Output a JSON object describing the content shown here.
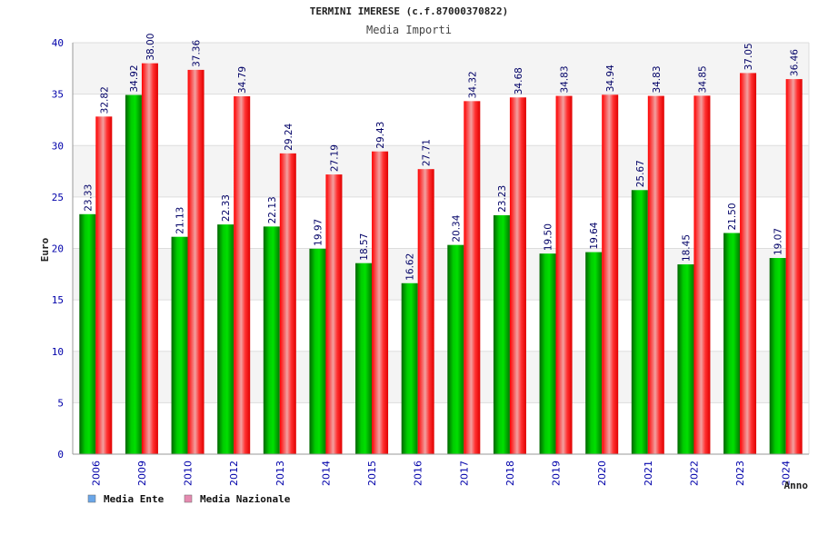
{
  "chart_data": {
    "type": "bar",
    "title": "TERMINI IMERESE (c.f.87000370822)",
    "subtitle": "Media Importi",
    "xlabel": "Anno",
    "ylabel": "Euro",
    "ylim": [
      0,
      40
    ],
    "ytick_step": 5,
    "grid": true,
    "legend_position": "bottom-left",
    "categories": [
      "2006",
      "2009",
      "2010",
      "2012",
      "2013",
      "2014",
      "2015",
      "2016",
      "2017",
      "2018",
      "2019",
      "2020",
      "2021",
      "2022",
      "2023",
      "2024"
    ],
    "series": [
      {
        "name": "Media Ente",
        "legend_color": "#6aa6e8",
        "bar_color": "#00b400",
        "values": [
          23.33,
          34.92,
          21.13,
          22.33,
          22.13,
          19.97,
          18.57,
          16.62,
          20.34,
          23.23,
          19.5,
          19.64,
          25.67,
          18.45,
          21.5,
          19.07
        ],
        "labels": [
          "23.33",
          "34.92",
          "21.13",
          "22.33",
          "22.13",
          "19.97",
          "18.57",
          "16.62",
          "20.34",
          "23.23",
          "19.50",
          "19.64",
          "25.67",
          "18.45",
          "21.50",
          "19.07"
        ]
      },
      {
        "name": "Media Nazionale",
        "legend_color": "#e58ab0",
        "bar_color": "#e60000",
        "values": [
          32.82,
          38.0,
          37.36,
          34.79,
          29.24,
          27.19,
          29.43,
          27.71,
          34.32,
          34.68,
          34.83,
          34.94,
          34.83,
          34.85,
          37.05,
          36.46
        ],
        "labels": [
          "32.82",
          "38.00",
          "37.36",
          "34.79",
          "29.24",
          "27.19",
          "29.43",
          "27.71",
          "34.32",
          "34.68",
          "34.83",
          "34.94",
          "34.83",
          "34.85",
          "37.05",
          "36.46"
        ]
      }
    ]
  }
}
